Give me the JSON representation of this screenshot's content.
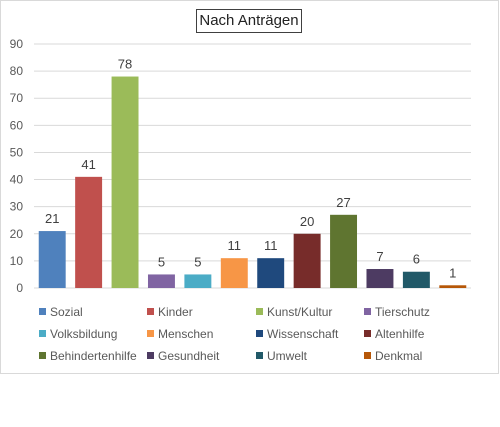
{
  "chart_data": {
    "type": "bar",
    "title": "Nach Anträgen",
    "xlabel": "",
    "ylabel": "",
    "ylim": [
      0,
      90
    ],
    "yticks": [
      "0",
      "10",
      "20",
      "30",
      "40",
      "50",
      "60",
      "70",
      "80",
      "90"
    ],
    "grid": true,
    "legend_position": "bottom",
    "categories": [
      "Sozial",
      "Kinder",
      "Kunst/Kultur",
      "Tierschutz",
      "Volksbildung",
      "Menschen",
      "Wissenschaft",
      "Altenhilfe",
      "Behindertenhilfe",
      "Gesundheit",
      "Umwelt",
      "Denkmal"
    ],
    "values": [
      21,
      41,
      78,
      5,
      5,
      11,
      11,
      20,
      27,
      7,
      6,
      1
    ],
    "colors": [
      "#4f81bd",
      "#c0504d",
      "#9bbb59",
      "#8064a2",
      "#4bacc6",
      "#f79646",
      "#1f497d",
      "#772c2a",
      "#5f7530",
      "#4d3b62",
      "#215968",
      "#b65708"
    ]
  }
}
